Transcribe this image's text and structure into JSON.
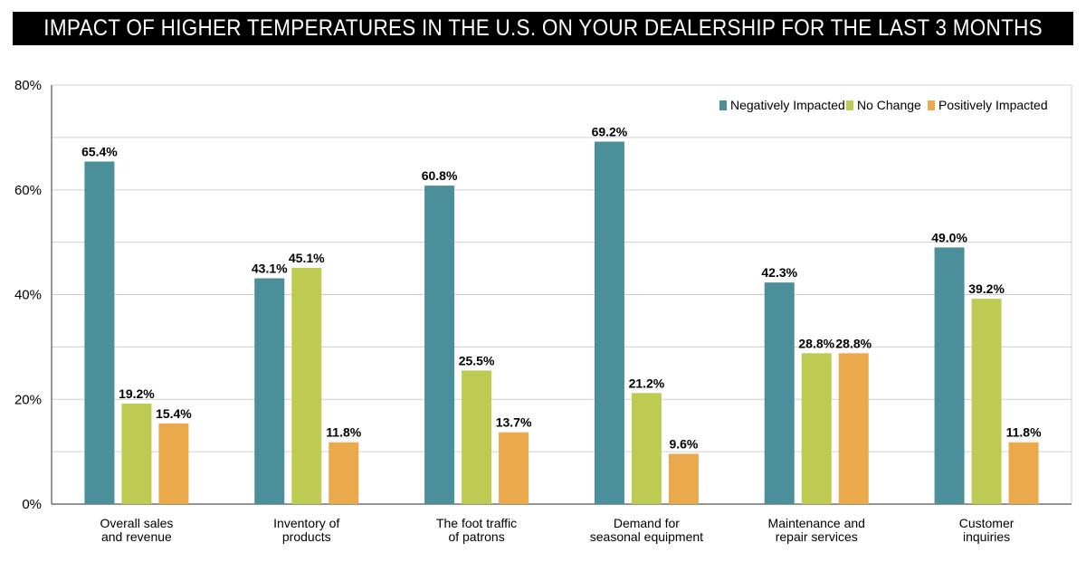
{
  "chart_data": {
    "type": "bar",
    "title": "IMPACT OF HIGHER TEMPERATURES IN THE U.S. ON YOUR DEALERSHIP FOR THE LAST 3 MONTHS",
    "xlabel": "",
    "ylabel": "",
    "ylim": [
      0,
      80
    ],
    "yticks": [
      0,
      20,
      40,
      60,
      80
    ],
    "ytick_labels": [
      "0%",
      "20%",
      "40%",
      "60%",
      "80%"
    ],
    "grid": true,
    "legend_position": "top-right",
    "categories": [
      [
        "Overall sales",
        "and revenue"
      ],
      [
        "Inventory of",
        "products"
      ],
      [
        "The foot traffic",
        "of patrons"
      ],
      [
        "Demand for",
        "seasonal equipment"
      ],
      [
        "Maintenance and",
        "repair services"
      ],
      [
        "Customer",
        "inquiries"
      ]
    ],
    "series": [
      {
        "name": "Negatively Impacted",
        "color": "#4a8f9a",
        "values": [
          65.4,
          43.1,
          60.8,
          69.2,
          42.3,
          49.0
        ],
        "labels": [
          "65.4%",
          "43.1%",
          "60.8%",
          "69.2%",
          "42.3%",
          "49.0%"
        ]
      },
      {
        "name": "No Change",
        "color": "#bdcb52",
        "values": [
          19.2,
          45.1,
          25.5,
          21.2,
          28.8,
          39.2
        ],
        "labels": [
          "19.2%",
          "45.1%",
          "25.5%",
          "21.2%",
          "28.8%",
          "39.2%"
        ]
      },
      {
        "name": "Positively Impacted",
        "color": "#eba94b",
        "values": [
          15.4,
          11.8,
          13.7,
          9.6,
          28.8,
          11.8
        ],
        "labels": [
          "15.4%",
          "11.8%",
          "13.7%",
          "9.6%",
          "28.8%",
          "11.8%"
        ]
      }
    ]
  }
}
